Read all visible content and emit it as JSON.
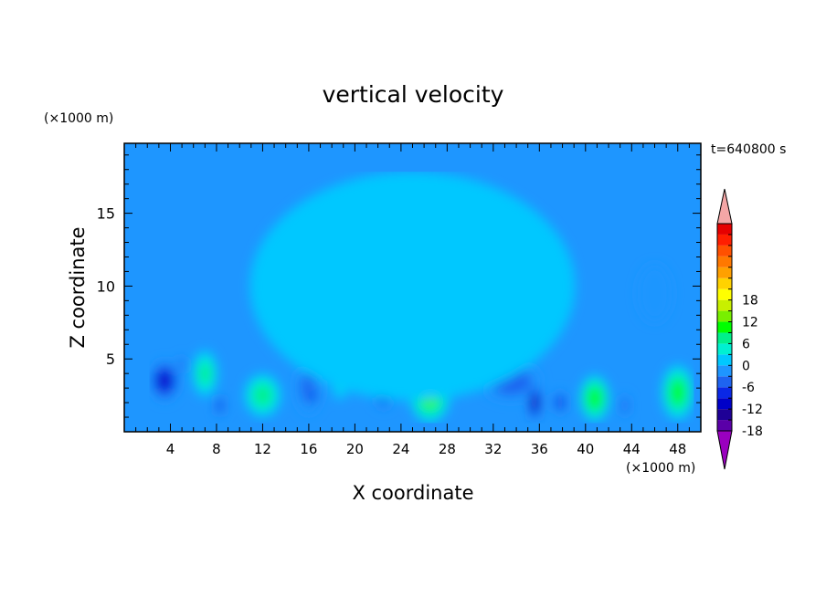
{
  "chart_data": {
    "type": "heatmap",
    "title": "vertical velocity",
    "xlabel": "X coordinate",
    "ylabel": "Z coordinate",
    "x_unit": "(×1000 m)",
    "y_unit": "(×1000 m)",
    "time_label": "t=640800 s",
    "xlim": [
      0,
      50
    ],
    "ylim": [
      0,
      19.8
    ],
    "x_ticks": [
      4,
      8,
      12,
      16,
      20,
      24,
      28,
      32,
      36,
      40,
      44,
      48
    ],
    "y_ticks": [
      5,
      10,
      15
    ],
    "colorbar": {
      "min": -21,
      "max": 21,
      "step": 3,
      "tick_values": [
        18,
        12,
        6,
        0,
        -6,
        -12,
        -18
      ],
      "colors": [
        "#9a00bf",
        "#5a00a8",
        "#1e0096",
        "#0000c8",
        "#0a28e6",
        "#1e64f0",
        "#1e96ff",
        "#00c8ff",
        "#00f0d2",
        "#00f08c",
        "#00ff00",
        "#78f000",
        "#c8f000",
        "#ffff00",
        "#ffd200",
        "#ffa000",
        "#ff7800",
        "#ff5000",
        "#ff1e00",
        "#e60000",
        "#f4a6a6"
      ]
    },
    "field_cells": [
      {
        "x": 3.5,
        "z": 3.5,
        "value": -13,
        "sx": 1.3,
        "sz": 1.4
      },
      {
        "x": 5.0,
        "z": 4.6,
        "value": -7,
        "sx": 0.4,
        "sz": 0.6
      },
      {
        "x": 7.0,
        "z": 4.0,
        "value": 9,
        "sx": 1.1,
        "sz": 1.6
      },
      {
        "x": 8.3,
        "z": 1.8,
        "value": -10,
        "sx": 0.4,
        "sz": 0.8
      },
      {
        "x": 12.0,
        "z": 2.5,
        "value": 10,
        "sx": 1.6,
        "sz": 1.5
      },
      {
        "x": 16.0,
        "z": 3.0,
        "value": -6,
        "sx": 1.2,
        "sz": 1.8
      },
      {
        "x": 16.3,
        "z": 2.5,
        "value": -10,
        "sx": 0.5,
        "sz": 0.8
      },
      {
        "x": 18.7,
        "z": 3.8,
        "value": 7,
        "sx": 0.8,
        "sz": 1.6
      },
      {
        "x": 22.5,
        "z": 2.7,
        "value": -12,
        "sx": 0.9,
        "sz": 1.1
      },
      {
        "x": 26.5,
        "z": 2.6,
        "value": 15,
        "sx": 1.8,
        "sz": 2.0
      },
      {
        "x": 33.5,
        "z": 3.5,
        "value": -8,
        "sx": 2.6,
        "sz": 1.4
      },
      {
        "x": 35.6,
        "z": 2.0,
        "value": -15,
        "sx": 0.6,
        "sz": 1.3
      },
      {
        "x": 37.8,
        "z": 2.0,
        "value": -10,
        "sx": 0.6,
        "sz": 0.8
      },
      {
        "x": 40.8,
        "z": 2.3,
        "value": 14,
        "sx": 1.3,
        "sz": 1.6
      },
      {
        "x": 43.4,
        "z": 1.8,
        "value": -8,
        "sx": 0.4,
        "sz": 0.8
      },
      {
        "x": 48.0,
        "z": 2.7,
        "value": 13,
        "sx": 1.4,
        "sz": 1.9
      },
      {
        "x": 25.0,
        "z": 10.0,
        "value": 1,
        "sx": 9.0,
        "sz": 5.0
      },
      {
        "x": 46.0,
        "z": 9.5,
        "value": -3,
        "sx": 1.5,
        "sz": 2.0
      }
    ]
  }
}
